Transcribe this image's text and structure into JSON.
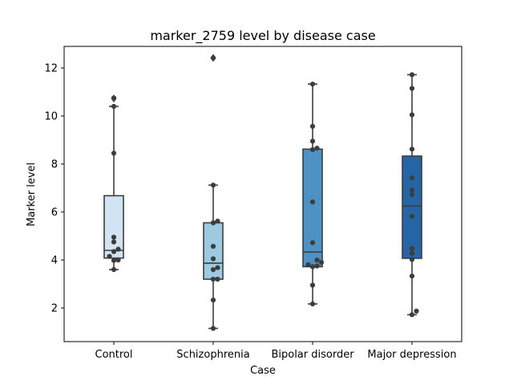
{
  "chart_data": {
    "type": "box",
    "title": "marker_2759 level by disease case",
    "xlabel": "Case",
    "ylabel": "Marker level",
    "ylim": [
      0.6,
      12.9
    ],
    "yticks": [
      2,
      4,
      6,
      8,
      10,
      12
    ],
    "grid": false,
    "legend": false,
    "categories": [
      "Control",
      "Schizophrenia",
      "Bipolar disorder",
      "Major depression"
    ],
    "boxes": [
      {
        "category": "Control",
        "color": "#d2e3f3",
        "whisker_low": 3.6,
        "q1": 4.08,
        "median": 4.4,
        "q3": 6.68,
        "whisker_high": 10.4,
        "outliers": [
          10.73
        ],
        "points": [
          3.6,
          3.98,
          4.0,
          4.15,
          4.35,
          4.45,
          4.75,
          4.95,
          8.45,
          10.4,
          10.75
        ]
      },
      {
        "category": "Schizophrenia",
        "color": "#9ecae1",
        "whisker_low": 1.15,
        "q1": 3.2,
        "median": 3.87,
        "q3": 5.55,
        "whisker_high": 7.12,
        "outliers": [
          12.42
        ],
        "points": [
          1.15,
          2.33,
          3.2,
          3.2,
          3.6,
          3.68,
          4.05,
          4.57,
          5.55,
          5.62,
          7.12,
          12.42
        ]
      },
      {
        "category": "Bipolar disorder",
        "color": "#4e91c5",
        "whisker_low": 2.17,
        "q1": 3.72,
        "median": 4.33,
        "q3": 8.62,
        "whisker_high": 11.33,
        "outliers": [],
        "points": [
          2.17,
          2.95,
          3.72,
          3.75,
          3.8,
          3.9,
          4.0,
          4.72,
          6.42,
          8.6,
          8.66,
          8.95,
          9.57,
          11.33
        ]
      },
      {
        "category": "Major depression",
        "color": "#2565a6",
        "whisker_low": 1.72,
        "q1": 4.07,
        "median": 6.25,
        "q3": 8.33,
        "whisker_high": 11.72,
        "outliers": [],
        "points": [
          1.72,
          1.87,
          3.33,
          4.02,
          4.28,
          4.48,
          5.82,
          6.72,
          6.92,
          7.42,
          8.62,
          10.05,
          11.15,
          11.72
        ]
      }
    ]
  }
}
